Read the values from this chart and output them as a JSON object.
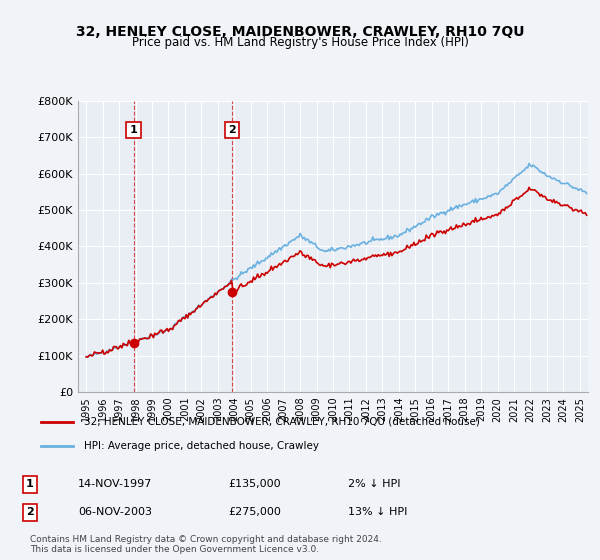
{
  "title": "32, HENLEY CLOSE, MAIDENBOWER, CRAWLEY, RH10 7QU",
  "subtitle": "Price paid vs. HM Land Registry's House Price Index (HPI)",
  "legend_line1": "32, HENLEY CLOSE, MAIDENBOWER, CRAWLEY, RH10 7QU (detached house)",
  "legend_line2": "HPI: Average price, detached house, Crawley",
  "footnote": "Contains HM Land Registry data © Crown copyright and database right 2024.\nThis data is licensed under the Open Government Licence v3.0.",
  "purchase1_date": "14-NOV-1997",
  "purchase1_price": 135000,
  "purchase1_pct": "2% ↓ HPI",
  "purchase2_date": "06-NOV-2003",
  "purchase2_price": 275000,
  "purchase2_pct": "13% ↓ HPI",
  "ylim": [
    0,
    800000
  ],
  "hpi_color": "#6ab0e0",
  "price_color": "#cc0000",
  "marker_color": "#cc0000",
  "bg_color": "#f0f4f8",
  "plot_bg": "#e8eef4",
  "grid_color": "#ffffff",
  "vline_color": "#cc0000"
}
